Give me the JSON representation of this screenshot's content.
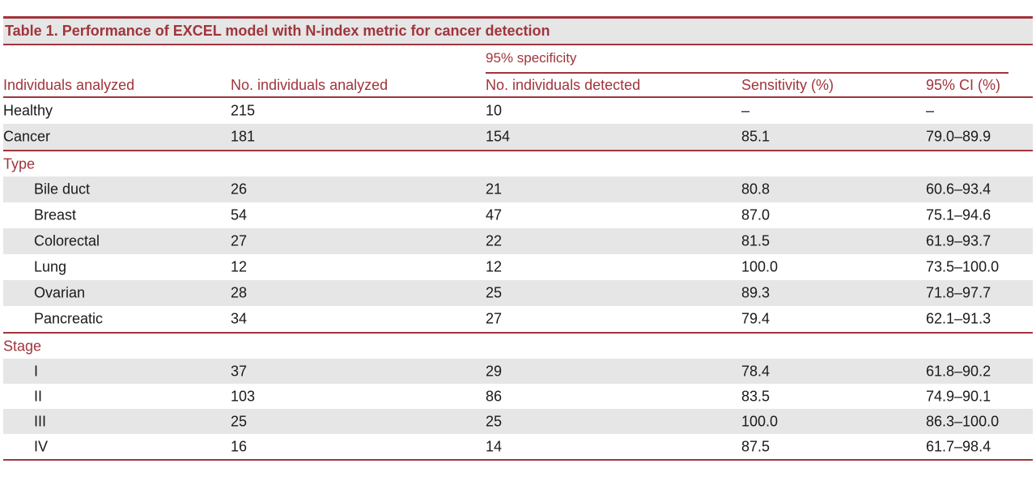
{
  "accent_color": "#a0353c",
  "title": "Table 1.  Performance of EXCEL model with N-index metric for cancer detection",
  "spanning_header": "95% specificity",
  "columns": [
    "Individuals analyzed",
    "No. individuals analyzed",
    "No. individuals detected",
    "Sensitivity (%)",
    "95% CI (%)"
  ],
  "top_rows": [
    {
      "label": "Healthy",
      "analyzed": "215",
      "detected": "10",
      "sensitivity": "–",
      "ci": "–"
    },
    {
      "label": "Cancer",
      "analyzed": "181",
      "detected": "154",
      "sensitivity": "85.1",
      "ci": "79.0–89.9"
    }
  ],
  "sections": [
    {
      "label": "Type",
      "rows": [
        {
          "label": "Bile duct",
          "analyzed": "26",
          "detected": "21",
          "sensitivity": "80.8",
          "ci": "60.6–93.4"
        },
        {
          "label": "Breast",
          "analyzed": "54",
          "detected": "47",
          "sensitivity": "87.0",
          "ci": "75.1–94.6"
        },
        {
          "label": "Colorectal",
          "analyzed": "27",
          "detected": "22",
          "sensitivity": "81.5",
          "ci": "61.9–93.7"
        },
        {
          "label": "Lung",
          "analyzed": "12",
          "detected": "12",
          "sensitivity": "100.0",
          "ci": "73.5–100.0"
        },
        {
          "label": "Ovarian",
          "analyzed": "28",
          "detected": "25",
          "sensitivity": "89.3",
          "ci": "71.8–97.7"
        },
        {
          "label": "Pancreatic",
          "analyzed": "34",
          "detected": "27",
          "sensitivity": "79.4",
          "ci": "62.1–91.3"
        }
      ]
    },
    {
      "label": "Stage",
      "rows": [
        {
          "label": "I",
          "analyzed": "37",
          "detected": "29",
          "sensitivity": "78.4",
          "ci": "61.8–90.2"
        },
        {
          "label": "II",
          "analyzed": "103",
          "detected": "86",
          "sensitivity": "83.5",
          "ci": "74.9–90.1"
        },
        {
          "label": "III",
          "analyzed": "25",
          "detected": "25",
          "sensitivity": "100.0",
          "ci": "86.3–100.0"
        },
        {
          "label": "IV",
          "analyzed": "16",
          "detected": "14",
          "sensitivity": "87.5",
          "ci": "61.7–98.4"
        }
      ]
    }
  ]
}
